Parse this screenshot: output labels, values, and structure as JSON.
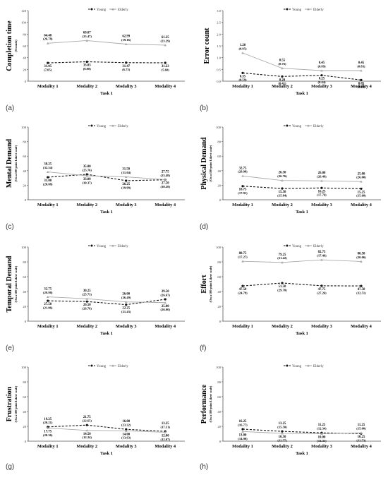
{
  "panels": [
    {
      "letter": "(a)"
    },
    {
      "letter": "(b)"
    },
    {
      "letter": "(c)"
    },
    {
      "letter": "(d)"
    },
    {
      "letter": "(e)"
    },
    {
      "letter": "(f)"
    },
    {
      "letter": "(g)"
    },
    {
      "letter": "(h)"
    }
  ],
  "chart_data": [
    {
      "type": "line",
      "title": "",
      "ylabel": "Completion time",
      "ylabel2": "(Seconds)",
      "xlabel": "Task 1",
      "categories": [
        "Modality 1",
        "Modality 2",
        "Modality 3",
        "Modality 4"
      ],
      "ylim": [
        0,
        120
      ],
      "yticks": [
        "0",
        "20",
        "40",
        "60",
        "80",
        "100",
        "120"
      ],
      "series": [
        {
          "name": "Young",
          "values": [
            31.05,
            33.03,
            31.47,
            31.23
          ],
          "labels": [
            "31.05",
            "33.03",
            "31.47",
            "31.23"
          ],
          "sd": [
            "(7.05)",
            "(8.08)",
            "(6.75)",
            "(5.60)"
          ]
        },
        {
          "name": "Elderly",
          "values": [
            64.4,
            69.07,
            62.99,
            61.25
          ],
          "labels": [
            "64.40",
            "69.07",
            "62.99",
            "61.25"
          ],
          "sd": [
            "(26.78)",
            "(25.47)",
            "(19.16)",
            "(23.29)"
          ]
        }
      ]
    },
    {
      "type": "line",
      "title": "",
      "ylabel": "Error count",
      "ylabel2": "",
      "xlabel": "Task 1",
      "categories": [
        "Modality 1",
        "Modality 2",
        "Modality 3",
        "Modality 4"
      ],
      "ylim": [
        0,
        3
      ],
      "yticks": [
        "0.0",
        "0.5",
        "1.0",
        "1.5",
        "2.0",
        "2.5",
        "3.0"
      ],
      "series": [
        {
          "name": "Young",
          "values": [
            0.35,
            0.2,
            0.25,
            0.05
          ],
          "labels": [
            "0.35",
            "0.20",
            "0.25",
            "0.05"
          ],
          "sd": [
            "(0.59)",
            "(0.41)",
            "(0.44)",
            "(0.22)"
          ]
        },
        {
          "name": "Elderly",
          "values": [
            1.2,
            0.55,
            0.45,
            0.45
          ],
          "labels": [
            "1.20",
            "0.55",
            "0.45",
            "0.45"
          ],
          "sd": [
            "(0.95)",
            "(0.76)",
            "(0.89)",
            "(0.83)"
          ]
        }
      ]
    },
    {
      "type": "line",
      "title": "",
      "ylabel": "Mental Demand",
      "ylabel2": "(On a 100-point Likert scale)",
      "xlabel": "Task 1",
      "categories": [
        "Modality 1",
        "Modality 2",
        "Modality 3",
        "Modality 4"
      ],
      "ylim": [
        0,
        100
      ],
      "yticks": [
        "0",
        "20",
        "40",
        "60",
        "80",
        "100"
      ],
      "series": [
        {
          "name": "Young",
          "values": [
            31.0,
            35.0,
            26.25,
            27.5
          ],
          "labels": [
            "31.00",
            "35.00",
            "26.25",
            "27.50"
          ],
          "sd": [
            "(20.88)",
            "(25.76)",
            "(19.99)",
            "(30.28)"
          ]
        },
        {
          "name": "Elderly",
          "values": [
            38.25,
            33.0,
            31.5,
            27.75
          ],
          "labels": [
            "38.25",
            "33.00",
            "31.50",
            "27.75"
          ],
          "sd": [
            "(32.54)",
            "(30.37)",
            "(31.04)",
            "(23.48)"
          ]
        }
      ]
    },
    {
      "type": "line",
      "title": "",
      "ylabel": "Physical Demand",
      "ylabel2": "(On a 100-point Likert scale)",
      "xlabel": "Task 1",
      "categories": [
        "Modality 1",
        "Modality 2",
        "Modality 3",
        "Modality 4"
      ],
      "ylim": [
        0,
        100
      ],
      "yticks": [
        "0",
        "20",
        "40",
        "60",
        "80",
        "100"
      ],
      "series": [
        {
          "name": "Young",
          "values": [
            18.75,
            15.5,
            16.25,
            15.25
          ],
          "labels": [
            "18.75",
            "15.50",
            "16.25",
            "15.25"
          ],
          "sd": [
            "(17.91)",
            "(15.84)",
            "(17.76)",
            "(15.60)"
          ]
        },
        {
          "name": "Elderly",
          "values": [
            32.75,
            26.5,
            26.0,
            25.0
          ],
          "labels": [
            "32.75",
            "26.50",
            "26.00",
            "25.00"
          ],
          "sd": [
            "(29.98)",
            "(26.76)",
            "(26.49)",
            "(26.00)"
          ]
        }
      ]
    },
    {
      "type": "line",
      "title": "",
      "ylabel": "Temporal Demand",
      "ylabel2": "(On a 100-point Likert scale)",
      "xlabel": "Task 1",
      "categories": [
        "Modality 1",
        "Modality 2",
        "Modality 3",
        "Modality 4"
      ],
      "ylim": [
        0,
        100
      ],
      "yticks": [
        "0",
        "20",
        "40",
        "60",
        "80",
        "100"
      ],
      "series": [
        {
          "name": "Young",
          "values": [
            27.5,
            26.5,
            22.25,
            29.5
          ],
          "labels": [
            "27.50",
            "26.50",
            "22.25",
            "29.50"
          ],
          "sd": [
            "(21.06)",
            "(26.76)",
            "(21.43)",
            "(26.67)"
          ]
        },
        {
          "name": "Elderly",
          "values": [
            32.75,
            30.25,
            26.0,
            25.0
          ],
          "labels": [
            "32.75",
            "30.25",
            "26.00",
            "25.00"
          ],
          "sd": [
            "(29.98)",
            "(25.73)",
            "(26.49)",
            "(26.00)"
          ]
        }
      ]
    },
    {
      "type": "line",
      "title": "",
      "ylabel": "Effort",
      "ylabel2": "(On a 100-point Likert scale)",
      "xlabel": "Task 1",
      "categories": [
        "Modality 1",
        "Modality 2",
        "Modality 3",
        "Modality 4"
      ],
      "ylim": [
        0,
        100
      ],
      "yticks": [
        "0",
        "20",
        "40",
        "60",
        "80",
        "100"
      ],
      "series": [
        {
          "name": "Young",
          "values": [
            47.5,
            51.5,
            47.75,
            47.5
          ],
          "labels": [
            "47.50",
            "51.50",
            "47.75",
            "47.50"
          ],
          "sd": [
            "(24.79)",
            "(29.78)",
            "(27.26)",
            "(32.51)"
          ]
        },
        {
          "name": "Elderly",
          "values": [
            80.75,
            79.25,
            82.75,
            80.5
          ],
          "labels": [
            "80.75",
            "79.25",
            "82.75",
            "80.50"
          ],
          "sd": [
            "(17.27)",
            "(21.42)",
            "(17.46)",
            "(20.06)"
          ]
        }
      ]
    },
    {
      "type": "line",
      "title": "",
      "ylabel": "Frustration",
      "ylabel2": "(On a 100-point Likert scale)",
      "xlabel": "Task 1",
      "categories": [
        "Modality 1",
        "Modality 2",
        "Modality 3",
        "Modality 4"
      ],
      "ylim": [
        0,
        100
      ],
      "yticks": [
        "0",
        "20",
        "40",
        "60",
        "80",
        "100"
      ],
      "series": [
        {
          "name": "Young",
          "values": [
            19.25,
            21.75,
            16.0,
            13.25
          ],
          "labels": [
            "19.25",
            "21.75",
            "16.00",
            "13.25"
          ],
          "sd": [
            "(20.21)",
            "(22.65)",
            "(23.32)",
            "(17.31)"
          ]
        },
        {
          "name": "Elderly",
          "values": [
            17.75,
            14.5,
            14.0,
            12.0
          ],
          "labels": [
            "17.75",
            "14.50",
            "14.00",
            "12.00"
          ],
          "sd": [
            "(20.36)",
            "(12.24)",
            "(13.63)",
            "(12.07)"
          ]
        }
      ]
    },
    {
      "type": "line",
      "title": "",
      "ylabel": "Performance",
      "ylabel2": "(On a 100-point Likert scale)",
      "xlabel": "Task 1",
      "categories": [
        "Modality 1",
        "Modality 2",
        "Modality 3",
        "Modality 4"
      ],
      "ylim": [
        0,
        100
      ],
      "yticks": [
        "0",
        "20",
        "40",
        "60",
        "80",
        "100"
      ],
      "series": [
        {
          "name": "Young",
          "values": [
            16.25,
            13.25,
            11.25,
            10.25
          ],
          "labels": [
            "16.25",
            "13.25",
            "11.25",
            "10.25"
          ],
          "sd": [
            "(16.77)",
            "(15.50)",
            "(12.34)",
            "(11.53)"
          ]
        },
        {
          "name": "Elderly",
          "values": [
            13.0,
            10.5,
            10.0,
            11.25
          ],
          "labels": [
            "13.00",
            "10.50",
            "10.00",
            "11.25"
          ],
          "sd": [
            "(14.90)",
            "(11.57)",
            "(13.31)",
            "(15.00)"
          ]
        }
      ]
    }
  ]
}
